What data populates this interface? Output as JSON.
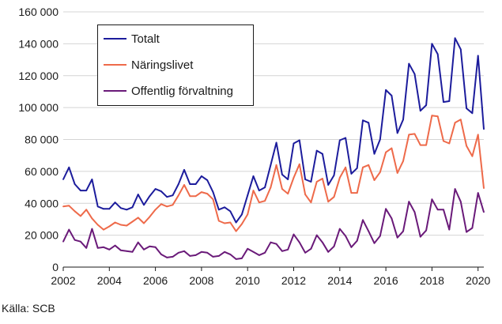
{
  "chart_data": {
    "type": "line",
    "title": "",
    "xlabel": "",
    "ylabel": "",
    "xlim": [
      2002,
      2020.25
    ],
    "ylim": [
      0,
      160000
    ],
    "x_ticks": [
      2002,
      2004,
      2006,
      2008,
      2010,
      2012,
      2014,
      2016,
      2018,
      2020
    ],
    "y_ticks": [
      0,
      20000,
      40000,
      60000,
      80000,
      100000,
      120000,
      140000,
      160000
    ],
    "y_tick_labels": [
      "0",
      "20 000",
      "40 000",
      "60 000",
      "80 000",
      "100 000",
      "120 000",
      "140 000",
      "160 000"
    ],
    "grid": "horizontal",
    "legend_position": "top-left",
    "x": [
      2002.0,
      2002.25,
      2002.5,
      2002.75,
      2003.0,
      2003.25,
      2003.5,
      2003.75,
      2004.0,
      2004.25,
      2004.5,
      2004.75,
      2005.0,
      2005.25,
      2005.5,
      2005.75,
      2006.0,
      2006.25,
      2006.5,
      2006.75,
      2007.0,
      2007.25,
      2007.5,
      2007.75,
      2008.0,
      2008.25,
      2008.5,
      2008.75,
      2009.0,
      2009.25,
      2009.5,
      2009.75,
      2010.0,
      2010.25,
      2010.5,
      2010.75,
      2011.0,
      2011.25,
      2011.5,
      2011.75,
      2012.0,
      2012.25,
      2012.5,
      2012.75,
      2013.0,
      2013.25,
      2013.5,
      2013.75,
      2014.0,
      2014.25,
      2014.5,
      2014.75,
      2015.0,
      2015.25,
      2015.5,
      2015.75,
      2016.0,
      2016.25,
      2016.5,
      2016.75,
      2017.0,
      2017.25,
      2017.5,
      2017.75,
      2018.0,
      2018.25,
      2018.5,
      2018.75,
      2019.0,
      2019.25,
      2019.5,
      2019.75,
      2020.0,
      2020.25
    ],
    "series": [
      {
        "name": "Totalt",
        "color": "#1c1c9c",
        "values": [
          55000,
          62500,
          52000,
          48000,
          48000,
          55000,
          38000,
          36500,
          36500,
          40500,
          37000,
          36000,
          37500,
          45500,
          39000,
          44500,
          49000,
          47500,
          44000,
          45000,
          52000,
          61000,
          52000,
          52000,
          57000,
          54500,
          47000,
          36000,
          37500,
          35000,
          28000,
          33000,
          45000,
          57000,
          48000,
          50000,
          64000,
          78000,
          58000,
          55000,
          77500,
          79500,
          55000,
          53500,
          73000,
          71000,
          51500,
          57500,
          79500,
          81000,
          58500,
          62000,
          92000,
          90500,
          71000,
          80000,
          111000,
          107500,
          84000,
          92500,
          127500,
          121000,
          98000,
          101500,
          140000,
          133500,
          103500,
          104000,
          143500,
          136500,
          99500,
          96500,
          132500,
          86500
        ]
      },
      {
        "name": "Näringslivet",
        "color": "#ee6a4a",
        "values": [
          38000,
          38500,
          35000,
          32000,
          36000,
          30500,
          26500,
          23500,
          25500,
          28000,
          26500,
          26000,
          28500,
          31000,
          27500,
          31500,
          36000,
          39500,
          38000,
          39000,
          45000,
          51500,
          44500,
          44500,
          47000,
          46000,
          42500,
          29000,
          27500,
          28000,
          22500,
          27000,
          33000,
          48000,
          40500,
          41500,
          50000,
          64000,
          49000,
          46000,
          56000,
          64500,
          45500,
          40500,
          53500,
          55500,
          41000,
          44000,
          56000,
          62500,
          46500,
          46500,
          62500,
          64000,
          54500,
          59500,
          72000,
          74500,
          59000,
          66500,
          83000,
          83500,
          76500,
          76500,
          95000,
          94500,
          79000,
          77500,
          90500,
          92500,
          76000,
          69500,
          83000,
          49500
        ]
      },
      {
        "name": "Offentlig förvaltning",
        "color": "#6a1a79",
        "values": [
          16000,
          23500,
          17000,
          16000,
          12000,
          24000,
          12000,
          12500,
          11000,
          13500,
          10500,
          10000,
          9500,
          15500,
          11000,
          13000,
          12500,
          8000,
          6000,
          6500,
          9000,
          10000,
          7000,
          7500,
          9500,
          9000,
          6500,
          7000,
          9500,
          8000,
          5000,
          5500,
          11500,
          9500,
          7500,
          9000,
          15500,
          14500,
          10000,
          11000,
          20500,
          15500,
          9000,
          11500,
          20000,
          15500,
          9500,
          13000,
          24000,
          19500,
          12500,
          16500,
          29500,
          22500,
          15000,
          19500,
          36500,
          30500,
          18500,
          22500,
          41000,
          34500,
          19000,
          23000,
          42500,
          36000,
          36000,
          23500,
          49000,
          41000,
          22000,
          24500,
          46500,
          34500
        ]
      }
    ]
  },
  "source": "Källa: SCB"
}
